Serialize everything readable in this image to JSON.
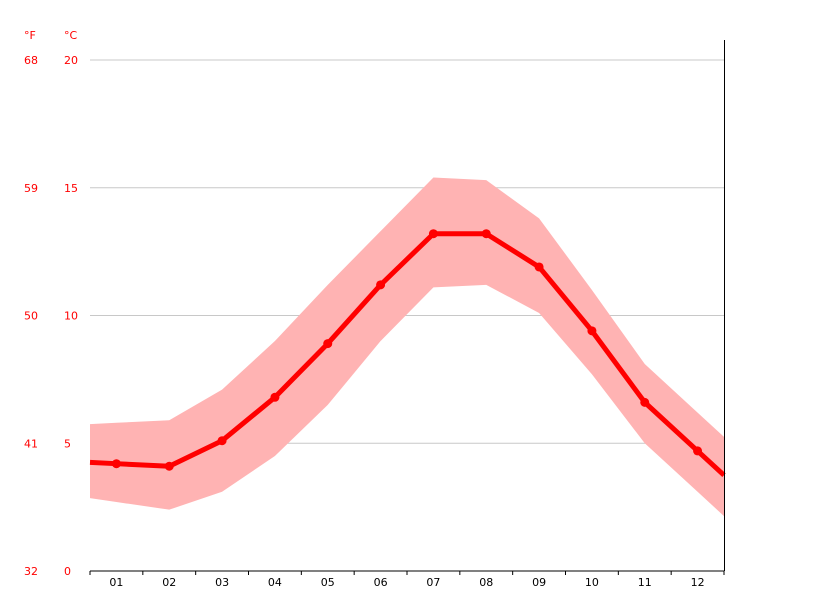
{
  "chart_data": {
    "type": "line",
    "title": "",
    "xlabel": "",
    "ylabel": "",
    "categories": [
      "01",
      "02",
      "03",
      "04",
      "05",
      "06",
      "07",
      "08",
      "09",
      "10",
      "11",
      "12"
    ],
    "y_unit_left": "°F",
    "y_unit_right": "°C",
    "ylim_c": [
      0,
      20
    ],
    "y_ticks_c": [
      "0",
      "5",
      "10",
      "15",
      "20"
    ],
    "y_ticks_f": [
      "32",
      "41",
      "50",
      "59",
      "68"
    ],
    "grid": "horizontal",
    "series": [
      {
        "values": [
          4.2,
          4.1,
          5.1,
          6.8,
          8.9,
          11.2,
          13.2,
          13.2,
          11.9,
          9.4,
          6.6,
          4.7
        ]
      }
    ],
    "band": {
      "upper": [
        5.8,
        5.9,
        7.1,
        9.0,
        11.2,
        13.3,
        15.4,
        15.3,
        13.8,
        11.0,
        8.1,
        6.2
      ],
      "lower": [
        2.7,
        2.4,
        3.1,
        4.5,
        6.5,
        9.0,
        11.1,
        11.2,
        10.1,
        7.7,
        5.0,
        3.1
      ]
    },
    "colors": {
      "line": "#ff0000",
      "band": "#ffb3b3",
      "grid": "#c8c8c8",
      "tick_text": "#ff0000",
      "axis": "#000000"
    }
  }
}
